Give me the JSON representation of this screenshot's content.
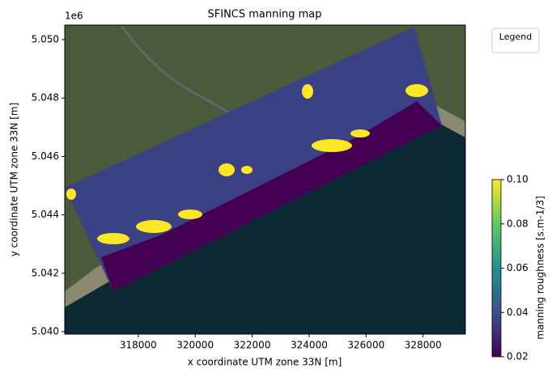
{
  "chart_data": {
    "type": "map",
    "title": "SFINCS manning map",
    "xlabel": "x coordinate UTM zone 33N [m]",
    "ylabel": "y coordinate UTM zone 33N [m]",
    "y_offset_text": "1e6",
    "legend_title": "Legend",
    "colorbar_label": "manning roughness [s.m-1/3]",
    "xlim": [
      315420,
      329486
    ],
    "ylim": [
      5039917,
      5050499
    ],
    "xticks": [
      318000,
      320000,
      322000,
      324000,
      326000,
      328000
    ],
    "yticks": [
      {
        "value": 5040000,
        "label": "5.040"
      },
      {
        "value": 5042000,
        "label": "5.042"
      },
      {
        "value": 5044000,
        "label": "5.044"
      },
      {
        "value": 5046000,
        "label": "5.046"
      },
      {
        "value": 5048000,
        "label": "5.048"
      },
      {
        "value": 5050000,
        "label": "5.050"
      }
    ],
    "clim": [
      0.02,
      0.1
    ],
    "cticks": [
      0.02,
      0.04,
      0.06,
      0.08,
      {
        "value": 0.1,
        "label": "0.10"
      }
    ],
    "colormap": [
      "#440154",
      "#3b528b",
      "#21918c",
      "#5ec962",
      "#fde725"
    ]
  }
}
